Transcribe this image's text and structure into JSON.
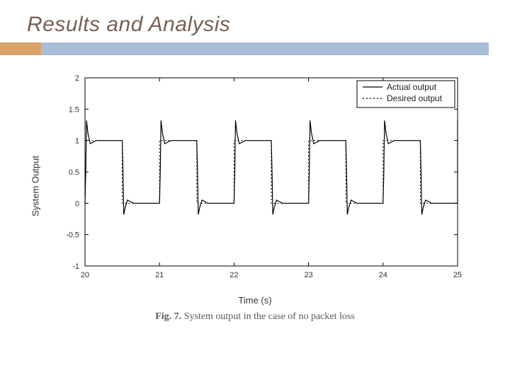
{
  "slide": {
    "title": "Results and Analysis",
    "title_fontsize": 30,
    "title_color": "#776053",
    "bar_orange": "#d8a36a",
    "bar_blue": "#a8bed8"
  },
  "caption": {
    "label_bold": "Fig. 7.",
    "text": "System output in the case of no packet loss",
    "fontsize": 14
  },
  "chart": {
    "type": "line",
    "xlabel": "Time (s)",
    "ylabel": "System Output",
    "label_fontsize": 13,
    "xlim": [
      20,
      25
    ],
    "ylim": [
      -1,
      2
    ],
    "xtick_step": 1,
    "yticks": [
      -1,
      -0.5,
      0,
      0.5,
      1,
      1.5,
      2
    ],
    "ytick_labels": [
      "-1",
      "-0.5",
      "0",
      "0.5",
      "1",
      "1.5",
      "2"
    ],
    "xtick_labels": [
      "20",
      "21",
      "22",
      "23",
      "24",
      "25"
    ],
    "tick_fontsize": 11,
    "background_color": "#ffffff",
    "axis_color": "#000000",
    "legend": {
      "position": "top-right",
      "border_color": "#000000",
      "bg": "#ffffff",
      "fontsize": 12,
      "items": [
        {
          "label": "Actual output",
          "style": "solid",
          "color": "#000000"
        },
        {
          "label": "Desired output",
          "style": "dotted",
          "color": "#000000"
        }
      ]
    },
    "period": 1.0,
    "high": 1.0,
    "low": 0.0,
    "overshoot_up": 0.32,
    "overshoot_down": -0.18,
    "series_actual": {
      "color": "#000000",
      "linewidth": 1.2,
      "dash": "none"
    },
    "series_desired": {
      "color": "#000000",
      "linewidth": 1.0,
      "dash": "2,3"
    }
  }
}
